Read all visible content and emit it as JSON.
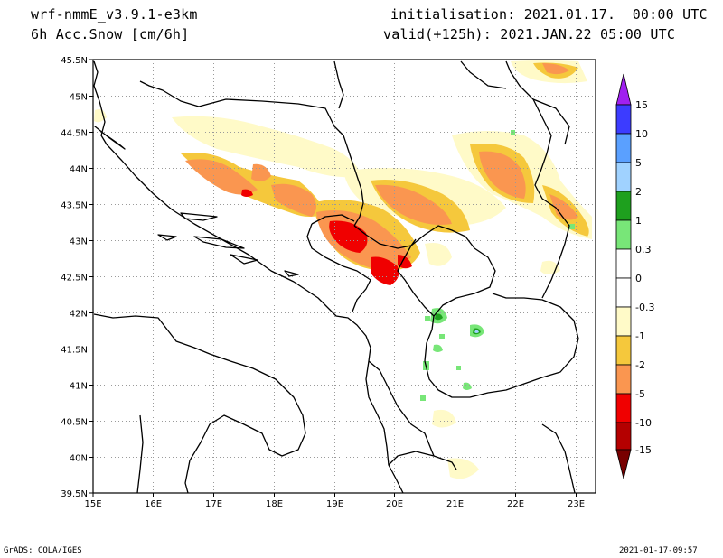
{
  "header": {
    "model": "wrf-nmmE_v3.9.1-e3km",
    "field": "6h Acc.Snow [cm/6h]",
    "init": "initialisation: 2021.01.17.  00:00 UTC",
    "valid": "valid(+125h): 2021.JAN.22 05:00 UTC"
  },
  "footer": {
    "credit": "GrADS: COLA/IGES",
    "timestamp": "2021-01-17-09:57"
  },
  "map": {
    "lon_ticks": [
      "15E",
      "16E",
      "17E",
      "18E",
      "19E",
      "20E",
      "21E",
      "22E",
      "23E"
    ],
    "lat_ticks": [
      "45.5N",
      "45N",
      "44.5N",
      "44N",
      "43.5N",
      "43N",
      "42.5N",
      "42N",
      "41.5N",
      "41N",
      "40.5N",
      "40N",
      "39.5N"
    ],
    "lon_range": [
      15,
      23.3
    ],
    "lat_range": [
      39.5,
      45.5
    ],
    "grid": "dotted"
  },
  "colorbar": {
    "labels": [
      "15",
      "10",
      "5",
      "2",
      "1",
      "0.3",
      "0",
      "-0.3",
      "-1",
      "-2",
      "-5",
      "-10",
      "-15"
    ],
    "colors": {
      "violet": "#a020f0",
      "blue": "#3c3cff",
      "mid_blue": "#5aa0ff",
      "light_blue": "#a0d2ff",
      "green": "#1ea01e",
      "light_green": "#78e678",
      "white": "#ffffff",
      "cream": "#fffac8",
      "yellow_orange": "#f5c83c",
      "orange": "#fa9650",
      "red": "#f00000",
      "dark_red": "#b40000",
      "maroon": "#780000"
    }
  }
}
